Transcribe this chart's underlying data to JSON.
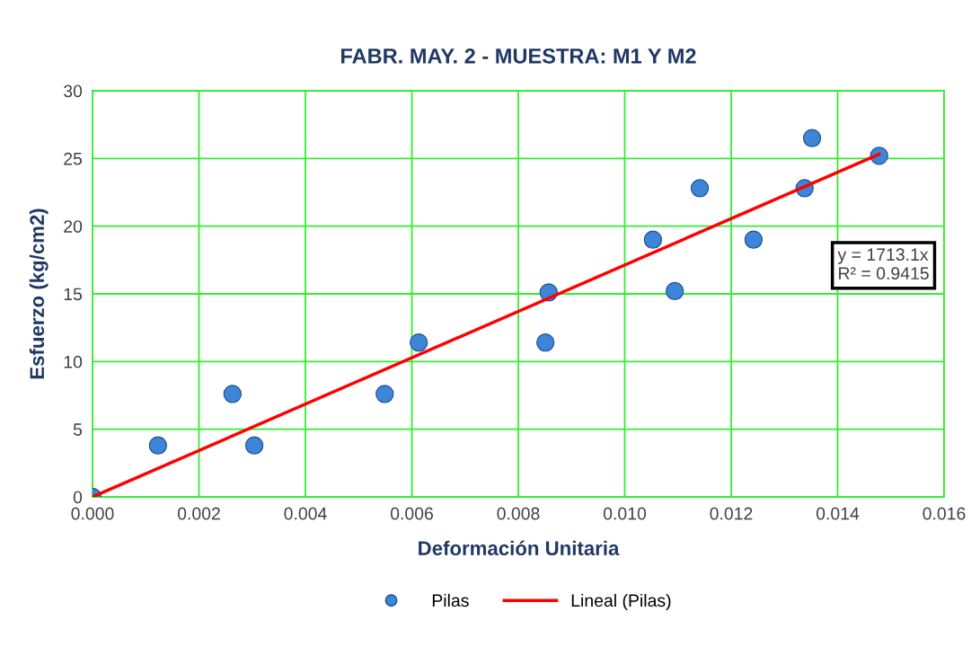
{
  "chart_data": {
    "type": "scatter",
    "title": "FABR. MAY. 2 - MUESTRA: M1 Y M2",
    "xlabel": "Deformación Unitaria",
    "ylabel": "Esfuerzo (kg/cm2)",
    "series": [
      {
        "name": "Pilas",
        "color": "#3d85d8",
        "marker": "circle",
        "x": [
          0.0,
          0.00123,
          0.00263,
          0.00304,
          0.00549,
          0.00613,
          0.00851,
          0.00857,
          0.01053,
          0.01094,
          0.01141,
          0.01242,
          0.01338,
          0.01352,
          0.01478
        ],
        "values": [
          0.0,
          3.8,
          7.6,
          3.8,
          7.6,
          11.4,
          11.4,
          15.1,
          19.0,
          15.2,
          22.8,
          19.0,
          22.8,
          26.5,
          25.2
        ]
      },
      {
        "name": "Lineal (Pilas)",
        "type": "line",
        "color": "#ff0000",
        "marker": "none",
        "line_style": "solid",
        "x": [
          0.0,
          0.01478
        ],
        "values": [
          0.0,
          25.32
        ]
      }
    ],
    "annotations": [
      "y = 1713.1x\nR² = 0.9415"
    ],
    "xlim": [
      0,
      0.016
    ],
    "xticks": [
      {
        "value": 0,
        "label": "0.000"
      },
      {
        "value": 0.002,
        "label": "0.002"
      },
      {
        "value": 0.004,
        "label": "0.004"
      },
      {
        "value": 0.006,
        "label": "0.006"
      },
      {
        "value": 0.008,
        "label": "0.008"
      },
      {
        "value": 0.01,
        "label": "0.010"
      },
      {
        "value": 0.012,
        "label": "0.012"
      },
      {
        "value": 0.014,
        "label": "0.014"
      },
      {
        "value": 0.016,
        "label": "0.016"
      }
    ],
    "ylim": [
      0,
      30
    ],
    "yticks": [
      0,
      5,
      10,
      15,
      20,
      25,
      30
    ],
    "grid": true,
    "legend": "bottom"
  }
}
